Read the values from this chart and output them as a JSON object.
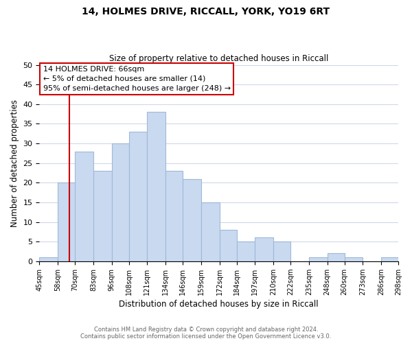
{
  "title1": "14, HOLMES DRIVE, RICCALL, YORK, YO19 6RT",
  "title2": "Size of property relative to detached houses in Riccall",
  "xlabel": "Distribution of detached houses by size in Riccall",
  "ylabel": "Number of detached properties",
  "bin_edges": [
    45,
    58,
    70,
    83,
    96,
    108,
    121,
    134,
    146,
    159,
    172,
    184,
    197,
    210,
    222,
    235,
    248,
    260,
    273,
    286,
    298
  ],
  "bin_labels": [
    "45sqm",
    "58sqm",
    "70sqm",
    "83sqm",
    "96sqm",
    "108sqm",
    "121sqm",
    "134sqm",
    "146sqm",
    "159sqm",
    "172sqm",
    "184sqm",
    "197sqm",
    "210sqm",
    "222sqm",
    "235sqm",
    "248sqm",
    "260sqm",
    "273sqm",
    "286sqm",
    "298sqm"
  ],
  "counts": [
    1,
    20,
    28,
    23,
    30,
    33,
    38,
    23,
    21,
    15,
    8,
    5,
    6,
    5,
    0,
    1,
    2,
    1,
    0,
    1
  ],
  "bar_color": "#c8d9f0",
  "bar_edge_color": "#a0b8d8",
  "grid_color": "#d0d8e8",
  "property_line_x": 66,
  "property_line_color": "#cc0000",
  "ylim": [
    0,
    50
  ],
  "yticks": [
    0,
    5,
    10,
    15,
    20,
    25,
    30,
    35,
    40,
    45,
    50
  ],
  "annotation_box_text": "14 HOLMES DRIVE: 66sqm\n← 5% of detached houses are smaller (14)\n95% of semi-detached houses are larger (248) →",
  "annotation_box_edge_color": "#cc0000",
  "annotation_box_bg": "#ffffff",
  "footer1": "Contains HM Land Registry data © Crown copyright and database right 2024.",
  "footer2": "Contains public sector information licensed under the Open Government Licence v3.0."
}
